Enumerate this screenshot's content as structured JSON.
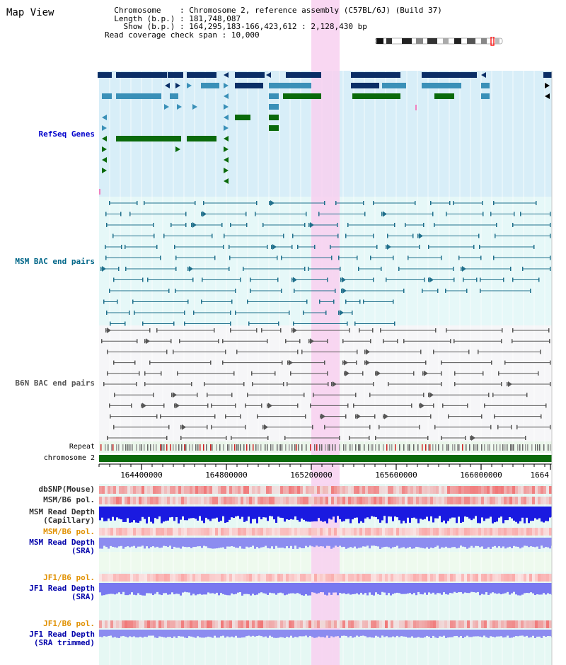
{
  "header": {
    "title": "Map View",
    "chromosome_label": "Chromosome",
    "chromosome_value": "Chromosome 2, reference assembly (C57BL/6J) (Build 37)",
    "length_label": "Length (b.p.)",
    "length_value": "181,748,087",
    "show_label": "Show (b.p.)",
    "show_value": "164,295,183-166,423,612 : 2,128,430 bp",
    "coverage_label": "Read coverage check span",
    "coverage_value": "10,000"
  },
  "tracks": {
    "refseq": "RefSeq Genes",
    "msm_bac": "MSM BAC end pairs",
    "b6n_bac": "B6N BAC end pairs",
    "repeat": "Repeat",
    "chromosome": "chromosome 2",
    "dbsnp": "dbSNP(Mouse)",
    "msm_b6_pol_1": "MSM/B6 pol.",
    "msm_depth_cap_1": "MSM Read Depth",
    "msm_depth_cap_2": "(Capillary)",
    "msm_b6_pol_2": "MSM/B6 pol.",
    "msm_depth_sra_1": "MSM Read Depth",
    "msm_depth_sra_2": "(SRA)",
    "jf1_b6_pol_1": "JF1/B6 pol.",
    "jf1_depth_sra_1": "JF1 Read Depth",
    "jf1_depth_sra_2": "(SRA)",
    "jf1_b6_pol_2": "JF1/B6 pol.",
    "jf1_depth_trim_1": "JF1 Read Depth",
    "jf1_depth_trim_2": "(SRA trimmed)"
  },
  "axis": {
    "ticks": [
      "164400000",
      "164800000",
      "165200000",
      "165600000",
      "166000000",
      "1664"
    ]
  },
  "colors": {
    "refseq_bg": "#d8eef8",
    "msm_bg": "#e6f8f8",
    "b6n_bg": "#f6f6f8",
    "highlight": "#f8d0f0",
    "refseq_label": "#0000cc",
    "msm_label": "#006688",
    "b6n_label": "#555555",
    "pol_label": "#e09000",
    "depth_label": "#0000aa"
  }
}
